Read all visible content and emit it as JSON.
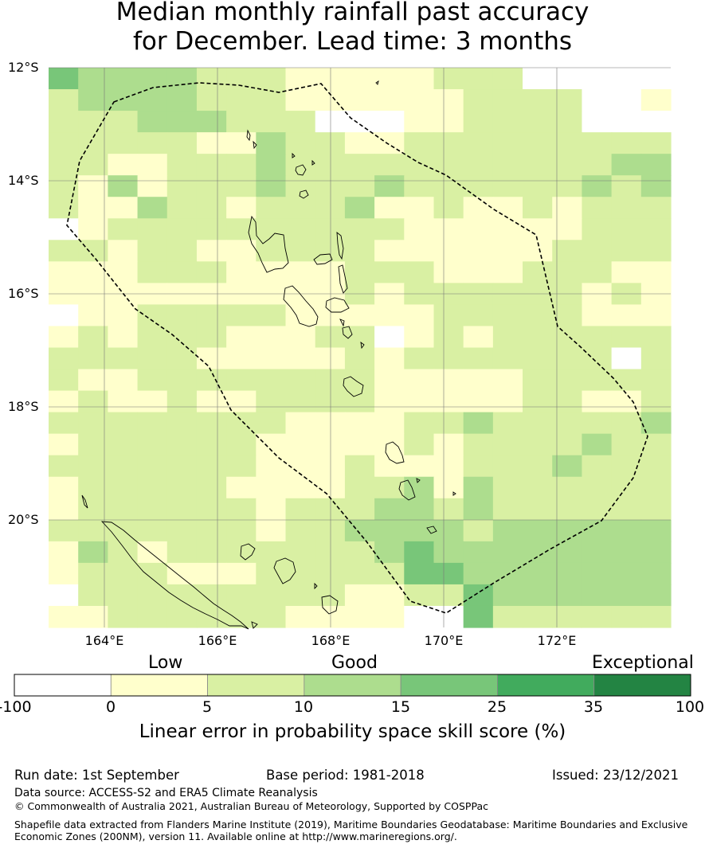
{
  "title": {
    "line1": "Median monthly rainfall past accuracy",
    "line2": "for December. Lead time: 3 months"
  },
  "map": {
    "lat_labels": [
      "12°S",
      "14°S",
      "16°S",
      "18°S",
      "20°S"
    ],
    "lon_labels": [
      "164°E",
      "166°E",
      "168°E",
      "170°E",
      "172°E"
    ]
  },
  "legend": {
    "categories": [
      "Low",
      "Good",
      "Exceptional"
    ],
    "ticks": [
      "-100",
      "0",
      "5",
      "10",
      "15",
      "25",
      "35",
      "100"
    ],
    "colors": [
      "#ffffff",
      "#ffffcc",
      "#d9f0a3",
      "#addd8e",
      "#78c679",
      "#41ab5d",
      "#238443"
    ],
    "label": "Linear error in probability space skill score (%)"
  },
  "grid_colors": {
    "0": "#ffffff",
    "1": "#ffffcc",
    "2": "#d9f0a3",
    "3": "#addd8e",
    "4": "#78c679"
  },
  "grid": [
    "433332221111122200000",
    "233332221111112222001",
    "222333222000112222000",
    "222221132211222222222",
    "221122232222222222233",
    "213122232223222222323",
    "211322122231121121222",
    "012222222222111111222",
    "221221122221111112222",
    "111222111122211122211",
    "111111111121222222121",
    "011222221111122222111",
    "121222111220121222222",
    "222221111121222222202",
    "211222222221111122222",
    "121121122221111122112",
    "222222221111223222223",
    "122222211111212222322",
    "222222211121112223222",
    "122222111122313222222",
    "122222212223323222222",
    "222222212233332333333",
    "132122222223433333333",
    "122211122222443333333",
    "022222222211224333333",
    "112222221111004222222"
  ],
  "footer": {
    "run_date": "Run date: 1st September",
    "base_period": "Base period: 1981-2018",
    "issued": "Issued: 23/12/2021",
    "data_source": "Data source: ACCESS-S2 and ERA5 Climate Reanalysis",
    "copyright": "© Commonwealth of Australia 2021, Australian Bureau of Meteorology, Supported by COSPPac",
    "shapefile_line1": "Shapefile data extracted from Flanders Marine Institute (2019), Maritime Boundaries Geodatabase: Maritime Boundaries and Exclusive",
    "shapefile_line2": "Economic Zones (200NM), version 11. Available online at http://www.marineregions.org/."
  }
}
